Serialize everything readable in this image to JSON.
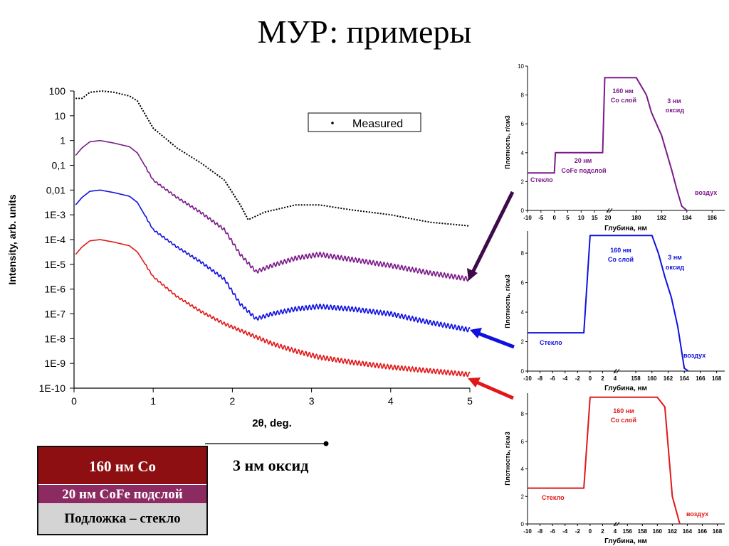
{
  "title": "МУР: примеры",
  "chart_data": [
    {
      "type": "line",
      "ylabel": "Intensity, arb. units",
      "xlabel": "2θ, deg.",
      "xlim": [
        0,
        5
      ],
      "ylim": [
        -10,
        2
      ],
      "y_scale": "log",
      "x_ticks": [
        "0",
        "1",
        "2",
        "3",
        "4",
        "5"
      ],
      "y_ticks": [
        "100",
        "10",
        "1",
        "0,1",
        "0,01",
        "1E-3",
        "1E-4",
        "1E-5",
        "1E-6",
        "1E-7",
        "1E-8",
        "1E-9",
        "1E-10"
      ],
      "legend": "Measured",
      "legend_position": "top-right",
      "series": [
        {
          "name": "Measured",
          "color": "#000000",
          "style": "dotted",
          "x": [
            0.02,
            0.1,
            0.2,
            0.35,
            0.5,
            0.7,
            0.8,
            1.0,
            1.3,
            1.6,
            1.9,
            2.1,
            2.2,
            2.4,
            2.8,
            3.1,
            3.5,
            4.0,
            4.5,
            5.0
          ],
          "y": [
            1.7,
            1.7,
            1.95,
            2.0,
            1.95,
            1.8,
            1.6,
            0.5,
            -0.3,
            -0.9,
            -1.6,
            -2.6,
            -3.2,
            -2.9,
            -2.6,
            -2.6,
            -2.8,
            -3.0,
            -3.3,
            -3.45
          ]
        },
        {
          "color": "#7b1a8a",
          "x": [
            0.02,
            0.1,
            0.2,
            0.33,
            0.5,
            0.7,
            0.8,
            1.0,
            1.3,
            1.6,
            1.9,
            2.1,
            2.3,
            2.5,
            2.8,
            3.1,
            3.5,
            4.0,
            4.5,
            5.0
          ],
          "y": [
            -0.6,
            -0.3,
            -0.05,
            0.0,
            -0.1,
            -0.25,
            -0.5,
            -1.6,
            -2.3,
            -2.9,
            -3.6,
            -4.6,
            -5.3,
            -5.05,
            -4.75,
            -4.6,
            -4.8,
            -5.05,
            -5.35,
            -5.6
          ]
        },
        {
          "color": "#1010e0",
          "x": [
            0.02,
            0.1,
            0.2,
            0.33,
            0.5,
            0.7,
            0.8,
            1.0,
            1.3,
            1.6,
            1.9,
            2.1,
            2.3,
            2.5,
            2.8,
            3.1,
            3.5,
            4.0,
            4.5,
            5.0
          ],
          "y": [
            -2.6,
            -2.3,
            -2.05,
            -2.0,
            -2.1,
            -2.25,
            -2.5,
            -3.6,
            -4.3,
            -4.9,
            -5.6,
            -6.6,
            -7.2,
            -7.0,
            -6.8,
            -6.7,
            -6.8,
            -7.0,
            -7.35,
            -7.65
          ]
        },
        {
          "color": "#e01818",
          "x": [
            0.02,
            0.1,
            0.2,
            0.33,
            0.5,
            0.7,
            0.8,
            1.0,
            1.3,
            1.6,
            1.9,
            2.2,
            2.5,
            2.8,
            3.1,
            3.5,
            4.0,
            4.5,
            5.0
          ],
          "y": [
            -4.6,
            -4.3,
            -4.05,
            -4.0,
            -4.1,
            -4.25,
            -4.5,
            -5.5,
            -6.3,
            -6.9,
            -7.4,
            -7.8,
            -8.2,
            -8.5,
            -8.75,
            -8.95,
            -9.15,
            -9.3,
            -9.45
          ]
        }
      ]
    },
    {
      "type": "line",
      "ylabel": "Плотность, г/см3",
      "xlabel": "Глубина, нм",
      "x_ticks": [
        "-10",
        "-5",
        "0",
        "5",
        "10",
        "15",
        "20",
        "180",
        "182",
        "184",
        "186"
      ],
      "y_ticks": [
        "0",
        "2",
        "4",
        "6",
        "8",
        "10"
      ],
      "ylim": [
        0,
        10
      ],
      "annotations": [
        "160 нм",
        "Co слой",
        "3 нм",
        "оксид",
        "20 нм",
        "CoFe подслой",
        "Стекло",
        "воздух"
      ],
      "series": [
        {
          "color": "#7b1a8a",
          "x": [
            -10,
            0,
            0.4,
            18,
            18.8,
            180,
            180.8,
            181.2,
            181.6,
            182,
            182.4,
            182.8,
            183.2,
            183.6,
            184
          ],
          "y": [
            2.6,
            2.6,
            4.0,
            4.0,
            9.2,
            9.2,
            8.0,
            6.8,
            6.0,
            5.2,
            4.0,
            2.8,
            1.5,
            0.3,
            0
          ]
        }
      ]
    },
    {
      "type": "line",
      "ylabel": "Плотность, г/см3",
      "xlabel": "Глубина, нм",
      "x_ticks": [
        "-10",
        "-8",
        "-6",
        "-4",
        "-2",
        "0",
        "2",
        "4",
        "158",
        "160",
        "162",
        "164",
        "166",
        "168"
      ],
      "y_ticks": [
        "0",
        "2",
        "4",
        "6",
        "8"
      ],
      "ylim": [
        0,
        9.5
      ],
      "annotations": [
        "160 нм",
        "Co слой",
        "3 нм",
        "оксид",
        "Стекло",
        "воздух"
      ],
      "series": [
        {
          "color": "#1010e0",
          "x": [
            -10,
            -1,
            0,
            160,
            160.8,
            161.6,
            162.4,
            163.2,
            164,
            164.5
          ],
          "y": [
            2.6,
            2.6,
            9.2,
            9.2,
            8.0,
            6.4,
            5.0,
            3.0,
            0.2,
            0
          ]
        }
      ]
    },
    {
      "type": "line",
      "ylabel": "Плотность, г/см3",
      "xlabel": "Глубина, нм",
      "x_ticks": [
        "-10",
        "-8",
        "-6",
        "-4",
        "-2",
        "0",
        "2",
        "4",
        "156",
        "158",
        "160",
        "162",
        "164",
        "166",
        "168"
      ],
      "y_ticks": [
        "0",
        "2",
        "4",
        "6",
        "8"
      ],
      "ylim": [
        0,
        9.5
      ],
      "annotations": [
        "160 нм",
        "Co слой",
        "Стекло",
        "воздух"
      ],
      "series": [
        {
          "color": "#e01818",
          "x": [
            -10,
            -1,
            0,
            160,
            161,
            162,
            163
          ],
          "y": [
            2.6,
            2.6,
            9.2,
            9.2,
            8.5,
            2.0,
            0
          ]
        }
      ]
    }
  ],
  "structure": {
    "layers": [
      "160 нм Co",
      "20 нм CoFe подслой",
      "Подложка – стекло"
    ],
    "oxide_label": "3 нм оксид"
  }
}
